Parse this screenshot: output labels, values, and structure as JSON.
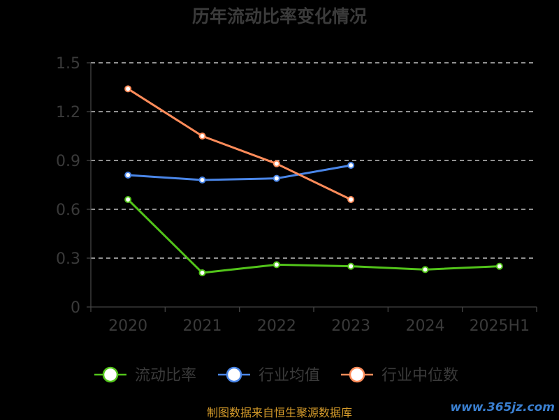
{
  "chart_data": {
    "type": "line",
    "title": "历年流动比率变化情况",
    "categories": [
      "2020",
      "2021",
      "2022",
      "2023",
      "2024",
      "2025H1"
    ],
    "ylim": [
      0,
      1.5
    ],
    "yticks": [
      "0",
      "0.3",
      "0.6",
      "0.9",
      "1.2",
      "1.5"
    ],
    "grid": true,
    "legend_position": "bottom",
    "series": [
      {
        "name": "流动比率",
        "color": "#52c41a",
        "values": [
          0.66,
          0.21,
          0.26,
          0.25,
          0.23,
          0.25
        ]
      },
      {
        "name": "行业均值",
        "color": "#4a86e8",
        "values": [
          0.81,
          0.78,
          0.79,
          0.87,
          null,
          null
        ]
      },
      {
        "name": "行业中位数",
        "color": "#ff8c5a",
        "values": [
          1.34,
          1.05,
          0.88,
          0.66,
          null,
          null
        ]
      }
    ]
  },
  "footer": {
    "source": "制图数据来自恒生聚源数据库",
    "watermark": "www.365jz.com"
  }
}
